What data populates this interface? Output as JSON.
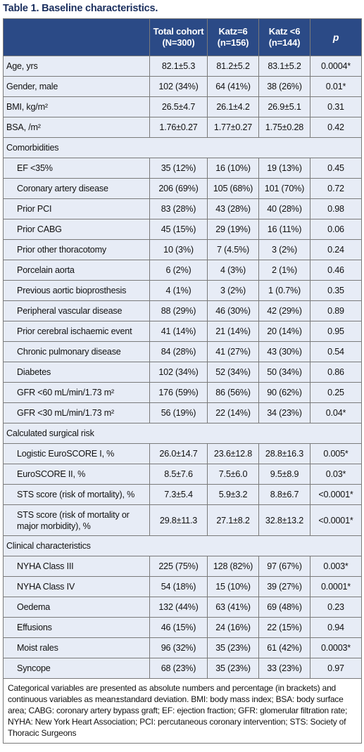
{
  "caption": "Table 1. Baseline characteristics.",
  "headers": {
    "col0": "",
    "col1_line1": "Total cohort",
    "col1_line2": "(N=300)",
    "col2_line1": "Katz=6",
    "col2_line2": "(n=156)",
    "col3_line1": "Katz <6",
    "col3_line2": "(n=144)",
    "col4": "p"
  },
  "rows": [
    {
      "type": "data",
      "label": "Age, yrs",
      "total": "82.1±5.3",
      "katz6": "81.2±5.2",
      "katzlt6": "83.1±5.2",
      "p": "0.0004*"
    },
    {
      "type": "data",
      "label": "Gender, male",
      "total": "102 (34%)",
      "katz6": "64 (41%)",
      "katzlt6": "38 (26%)",
      "p": "0.01*"
    },
    {
      "type": "data",
      "label": "BMI, kg/m²",
      "total": "26.5±4.7",
      "katz6": "26.1±4.2",
      "katzlt6": "26.9±5.1",
      "p": "0.31"
    },
    {
      "type": "data",
      "label": "BSA, /m²",
      "total": "1.76±0.27",
      "katz6": "1.77±0.27",
      "katzlt6": "1.75±0.28",
      "p": "0.42"
    },
    {
      "type": "section",
      "label": "Comorbidities"
    },
    {
      "type": "sub",
      "label": "EF <35%",
      "total": "35 (12%)",
      "katz6": "16 (10%)",
      "katzlt6": "19 (13%)",
      "p": "0.45"
    },
    {
      "type": "sub",
      "label": "Coronary artery disease",
      "total": "206 (69%)",
      "katz6": "105 (68%)",
      "katzlt6": "101 (70%)",
      "p": "0.72"
    },
    {
      "type": "sub",
      "label": "Prior PCI",
      "total": "83 (28%)",
      "katz6": "43 (28%)",
      "katzlt6": "40 (28%)",
      "p": "0.98"
    },
    {
      "type": "sub",
      "label": "Prior CABG",
      "total": "45 (15%)",
      "katz6": "29 (19%)",
      "katzlt6": "16 (11%)",
      "p": "0.06"
    },
    {
      "type": "sub",
      "label": "Prior other thoracotomy",
      "total": "10 (3%)",
      "katz6": "7 (4.5%)",
      "katzlt6": "3 (2%)",
      "p": "0.24"
    },
    {
      "type": "sub",
      "label": "Porcelain aorta",
      "total": "6 (2%)",
      "katz6": "4 (3%)",
      "katzlt6": "2 (1%)",
      "p": "0.46"
    },
    {
      "type": "sub",
      "label": "Previous aortic bioprosthesis",
      "total": "4 (1%)",
      "katz6": "3 (2%)",
      "katzlt6": "1 (0.7%)",
      "p": "0.35"
    },
    {
      "type": "sub",
      "label": "Peripheral vascular disease",
      "total": "88 (29%)",
      "katz6": "46 (30%)",
      "katzlt6": "42 (29%)",
      "p": "0.89"
    },
    {
      "type": "sub",
      "label": "Prior cerebral ischaemic event",
      "total": "41 (14%)",
      "katz6": "21 (14%)",
      "katzlt6": "20 (14%)",
      "p": "0.95"
    },
    {
      "type": "sub",
      "label": "Chronic pulmonary disease",
      "total": "84 (28%)",
      "katz6": "41 (27%)",
      "katzlt6": "43 (30%)",
      "p": "0.54"
    },
    {
      "type": "sub",
      "label": "Diabetes",
      "total": "102 (34%)",
      "katz6": "52 (34%)",
      "katzlt6": "50 (34%)",
      "p": "0.86"
    },
    {
      "type": "sub",
      "label": "GFR <60 mL/min/1.73 m²",
      "total": "176 (59%)",
      "katz6": "86 (56%)",
      "katzlt6": "90 (62%)",
      "p": "0.25"
    },
    {
      "type": "sub",
      "label": "GFR <30 mL/min/1.73 m²",
      "total": "56 (19%)",
      "katz6": "22 (14%)",
      "katzlt6": "34 (23%)",
      "p": "0.04*"
    },
    {
      "type": "section",
      "label": "Calculated surgical risk"
    },
    {
      "type": "sub",
      "label": "Logistic EuroSCORE I, %",
      "total": "26.0±14.7",
      "katz6": "23.6±12.8",
      "katzlt6": "28.8±16.3",
      "p": "0.005*"
    },
    {
      "type": "sub",
      "label": "EuroSCORE II, %",
      "total": "8.5±7.6",
      "katz6": "7.5±6.0",
      "katzlt6": "9.5±8.9",
      "p": "0.03*"
    },
    {
      "type": "sub",
      "label": "STS score (risk of mortality), %",
      "total": "7.3±5.4",
      "katz6": "5.9±3.2",
      "katzlt6": "8.8±6.7",
      "p": "<0.0001*"
    },
    {
      "type": "sub-tall",
      "label_line1": "STS score (risk of mortality or",
      "label_line2": "major morbidity), %",
      "total": "29.8±11.3",
      "katz6": "27.1±8.2",
      "katzlt6": "32.8±13.2",
      "p": "<0.0001*"
    },
    {
      "type": "section",
      "label": "Clinical characteristics"
    },
    {
      "type": "sub",
      "label": "NYHA Class III",
      "total": "225 (75%)",
      "katz6": "128 (82%)",
      "katzlt6": "97 (67%)",
      "p": "0.003*"
    },
    {
      "type": "sub",
      "label": "NYHA Class IV",
      "total": "54 (18%)",
      "katz6": "15 (10%)",
      "katzlt6": "39 (27%)",
      "p": "0.0001*"
    },
    {
      "type": "sub",
      "label": "Oedema",
      "total": "132 (44%)",
      "katz6": "63 (41%)",
      "katzlt6": "69 (48%)",
      "p": "0.23"
    },
    {
      "type": "sub",
      "label": "Effusions",
      "total": "46 (15%)",
      "katz6": "24 (16%)",
      "katzlt6": "22 (15%)",
      "p": "0.94"
    },
    {
      "type": "sub",
      "label": "Moist rales",
      "total": "96 (32%)",
      "katz6": "35 (23%)",
      "katzlt6": "61 (42%)",
      "p": "0.0003*"
    },
    {
      "type": "sub",
      "label": "Syncope",
      "total": "68 (23%)",
      "katz6": "35 (23%)",
      "katzlt6": "33 (23%)",
      "p": "0.97"
    }
  ],
  "footnote": "Categorical variables are presented as absolute numbers and percentage (in brackets) and continuous variables as mean±standard deviation. BMI: body mass index; BSA: body surface area; CABG: coronary artery bypass graft; EF: ejection fraction; GFR: glomerular filtration rate; NYHA: New York Heart Association; PCI: percutaneous coronary intervention; STS: Society of Thoracic Surgeons",
  "colors": {
    "header_bg": "#2b4a86",
    "row_bg": "#e7ecf6",
    "caption": "#1b2f5e"
  }
}
